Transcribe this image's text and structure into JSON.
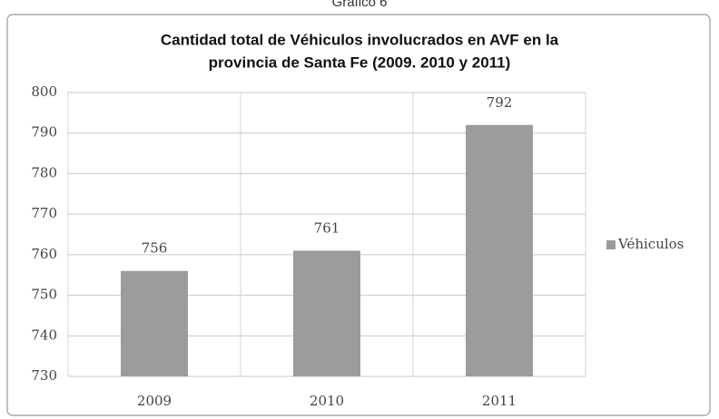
{
  "chart_data": {
    "type": "bar",
    "caption": "Gráfico 6",
    "title": [
      "Cantidad total de Véhiculos involucrados en AVF en la",
      "provincia de Santa Fe (2009. 2010 y 2011)"
    ],
    "categories": [
      "2009",
      "2010",
      "2011"
    ],
    "series": [
      {
        "name": "Véhiculos",
        "color": "#9c9c9c",
        "values": [
          756,
          761,
          792
        ]
      }
    ],
    "ylim": [
      730,
      800
    ],
    "yticks": [
      730,
      740,
      750,
      760,
      770,
      780,
      790,
      800
    ],
    "grid": true,
    "legend": "right"
  }
}
